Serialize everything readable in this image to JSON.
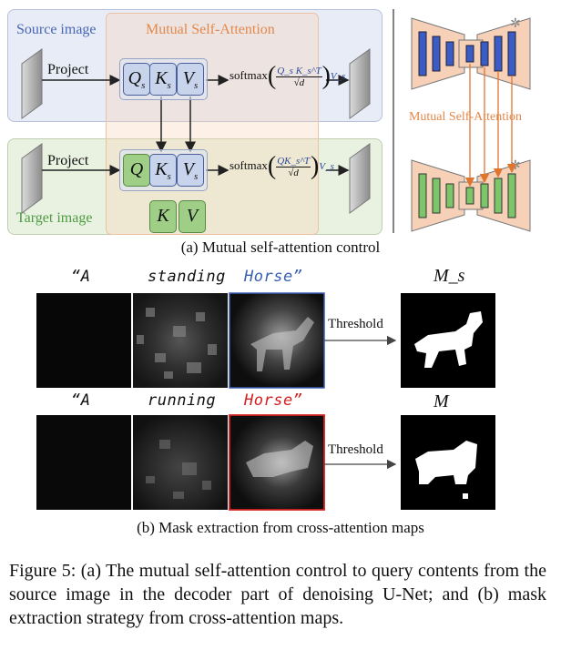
{
  "panel_a": {
    "source_label": "Source image",
    "mutual_label": "Mutual Self-Attention",
    "target_label": "Target image",
    "project_label": "Project",
    "softmax_label": "softmax",
    "tokens_src": {
      "q": "Q",
      "k": "K",
      "v": "V",
      "sub": "s"
    },
    "tokens_tgt": {
      "q": "Q",
      "k": "K",
      "v": "V",
      "sub": "s"
    },
    "tokens_extra": {
      "k": "K",
      "v": "V"
    },
    "formula_src": {
      "num": "Q_s K_s^T",
      "den": "√d",
      "v": "V_s"
    },
    "formula_tgt": {
      "num": "QK_s^T",
      "den": "√d",
      "v": "V_s"
    },
    "unet_label": "Mutual Self-Attention",
    "caption": "(a) Mutual self-attention control"
  },
  "panel_b": {
    "row1": {
      "quote_open": "“A",
      "word2": "standing",
      "word3": "Horse”",
      "threshold": "Threshold",
      "mask_label": "M_s"
    },
    "row2": {
      "quote_open": "“A",
      "word2": "running",
      "word3": "Horse”",
      "threshold": "Threshold",
      "mask_label": "M"
    },
    "caption": "(b) Mask extraction from cross-attention maps",
    "colors": {
      "highlight_row1": "#3a5fb0",
      "highlight_row2": "#d22020"
    }
  },
  "figure_caption": "Figure 5: (a) The mutual self-attention control to query contents from the source image in the decoder part of denoising U-Net; and (b) mask extraction strategy from cross-attention maps."
}
